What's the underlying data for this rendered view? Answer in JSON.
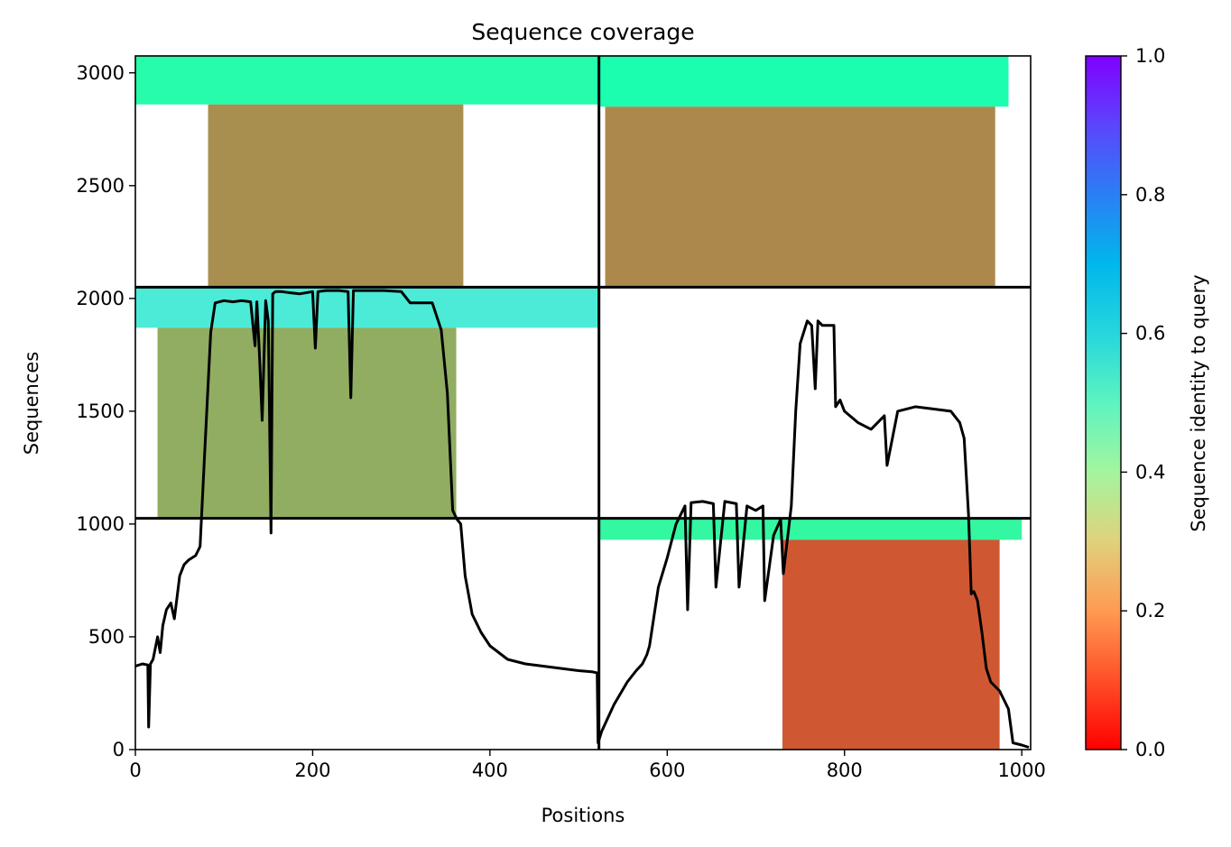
{
  "chart_data": {
    "type": "heatmap",
    "title": "Sequence coverage",
    "xlabel": "Positions",
    "ylabel": "Sequences",
    "colorbar_label": "Sequence identity to query",
    "colormap": "rainbow_r",
    "colorbar_range": [
      0.0,
      1.0
    ],
    "colorbar_ticks": [
      "0.0",
      "0.2",
      "0.4",
      "0.6",
      "0.8",
      "1.0"
    ],
    "xlim": [
      0,
      1010
    ],
    "ylim": [
      0,
      3075
    ],
    "x_ticks": [
      "0",
      "200",
      "400",
      "600",
      "800",
      "1000"
    ],
    "y_ticks": [
      "0",
      "500",
      "1000",
      "1500",
      "2000",
      "2500",
      "3000"
    ],
    "chain_boundaries_x": [
      523
    ],
    "chain_boundaries_y": [
      1025,
      2050
    ],
    "coverage_blocks": [
      {
        "x": [
          0,
          523
        ],
        "y": [
          2860,
          3075
        ],
        "identity": 0.45
      },
      {
        "x": [
          82,
          370
        ],
        "y": [
          2050,
          2860
        ],
        "identity": 0.18
      },
      {
        "x": [
          523,
          985
        ],
        "y": [
          2850,
          3075
        ],
        "identity": 0.47
      },
      {
        "x": [
          530,
          970
        ],
        "y": [
          2050,
          2850
        ],
        "identity": 0.17
      },
      {
        "x": [
          0,
          523
        ],
        "y": [
          1870,
          2050
        ],
        "identity": 0.63
      },
      {
        "x": [
          25,
          362
        ],
        "y": [
          1025,
          1870
        ],
        "identity": 0.23
      },
      {
        "x": [
          523,
          1000
        ],
        "y": [
          930,
          1025
        ],
        "identity": 0.42
      },
      {
        "x": [
          730,
          975
        ],
        "y": [
          0,
          930
        ],
        "identity": 0.1
      }
    ],
    "coverage_line": {
      "x": [
        0,
        8,
        14,
        15,
        17,
        20,
        25,
        28,
        31,
        35,
        40,
        44,
        50,
        55,
        60,
        68,
        73,
        78,
        85,
        90,
        95,
        100,
        110,
        120,
        130,
        135,
        137,
        140,
        143,
        147,
        150,
        153,
        155,
        158,
        165,
        175,
        185,
        200,
        203,
        206,
        215,
        230,
        240,
        243,
        246,
        260,
        280,
        300,
        310,
        320,
        335,
        345,
        352,
        358,
        363,
        367,
        372,
        380,
        390,
        400,
        420,
        440,
        460,
        480,
        500,
        515,
        521,
        522,
        526,
        540,
        555,
        565,
        572,
        577,
        580,
        590,
        600,
        610,
        620,
        623,
        627,
        640,
        652,
        655,
        665,
        678,
        681,
        690,
        700,
        708,
        710,
        720,
        728,
        731,
        740,
        745,
        750,
        758,
        763,
        767,
        770,
        775,
        788,
        790,
        795,
        800,
        815,
        830,
        845,
        848,
        860,
        880,
        900,
        920,
        930,
        935,
        940,
        943,
        946,
        950,
        955,
        960,
        965,
        975,
        985,
        990,
        1000,
        1008
      ],
      "y": [
        370,
        380,
        375,
        100,
        380,
        400,
        500,
        430,
        550,
        620,
        650,
        580,
        770,
        820,
        840,
        860,
        900,
        1300,
        1850,
        1980,
        1985,
        1990,
        1985,
        1990,
        1985,
        1790,
        1985,
        1750,
        1460,
        1990,
        1900,
        960,
        2020,
        2030,
        2030,
        2025,
        2020,
        2030,
        1780,
        2030,
        2035,
        2035,
        2030,
        1560,
        2035,
        2035,
        2035,
        2030,
        1980,
        1980,
        1980,
        1860,
        1580,
        1060,
        1020,
        1000,
        770,
        600,
        520,
        460,
        400,
        380,
        370,
        360,
        350,
        345,
        340,
        30,
        80,
        200,
        300,
        350,
        380,
        420,
        460,
        720,
        850,
        1000,
        1080,
        620,
        1095,
        1100,
        1090,
        720,
        1100,
        1090,
        720,
        1080,
        1060,
        1080,
        660,
        950,
        1020,
        780,
        1080,
        1500,
        1800,
        1900,
        1880,
        1600,
        1900,
        1880,
        1880,
        1520,
        1550,
        1500,
        1450,
        1420,
        1480,
        1260,
        1500,
        1520,
        1510,
        1500,
        1450,
        1380,
        1040,
        690,
        700,
        660,
        520,
        360,
        300,
        260,
        180,
        30,
        20,
        10
      ]
    }
  }
}
